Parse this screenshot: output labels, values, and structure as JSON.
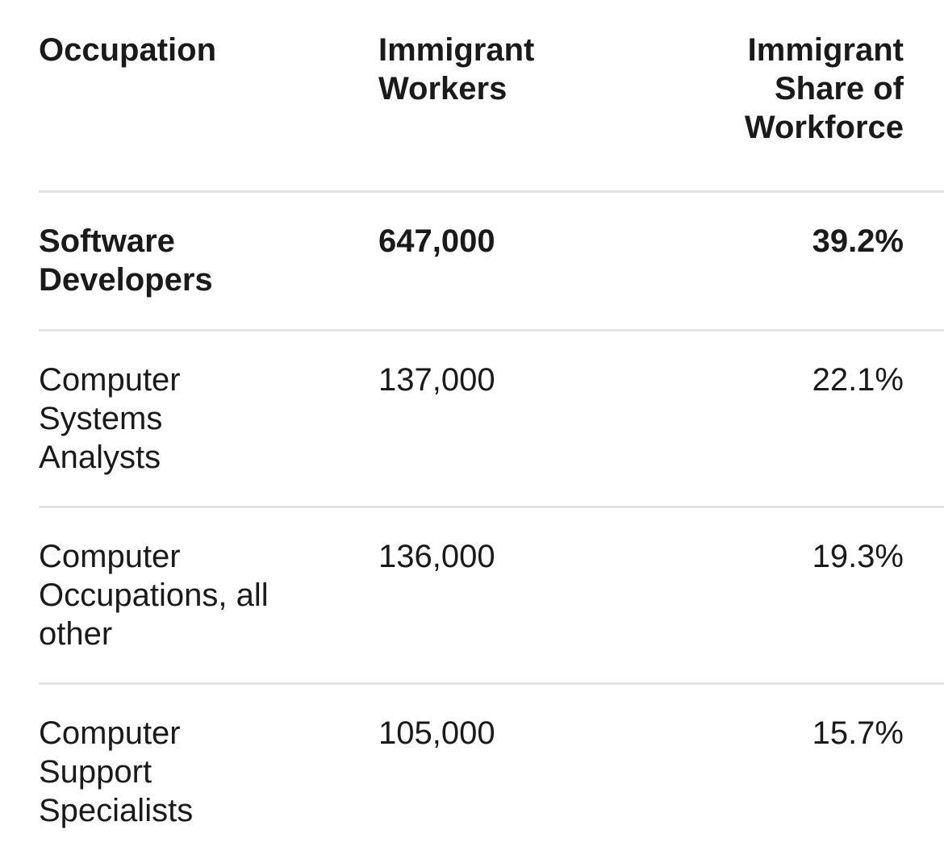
{
  "chart_data": {
    "type": "table",
    "columns": [
      [
        "Occupation"
      ],
      [
        "Immigrant",
        "Workers"
      ],
      [
        "Immigrant",
        "Share of",
        "Workforce"
      ]
    ],
    "rows": [
      {
        "occupation": [
          "Software",
          "Developers"
        ],
        "immigrant_workers": "647,000",
        "immigrant_share": "39.2%",
        "highlight": true
      },
      {
        "occupation": [
          "Computer",
          "Systems",
          "Analysts"
        ],
        "immigrant_workers": "137,000",
        "immigrant_share": "22.1%",
        "highlight": false
      },
      {
        "occupation": [
          "Computer",
          "Occupations, all",
          "other"
        ],
        "immigrant_workers": "136,000",
        "immigrant_share": "19.3%",
        "highlight": false
      },
      {
        "occupation": [
          "Computer",
          "Support",
          "Specialists"
        ],
        "immigrant_workers": "105,000",
        "immigrant_share": "15.7%",
        "highlight": false
      }
    ]
  }
}
